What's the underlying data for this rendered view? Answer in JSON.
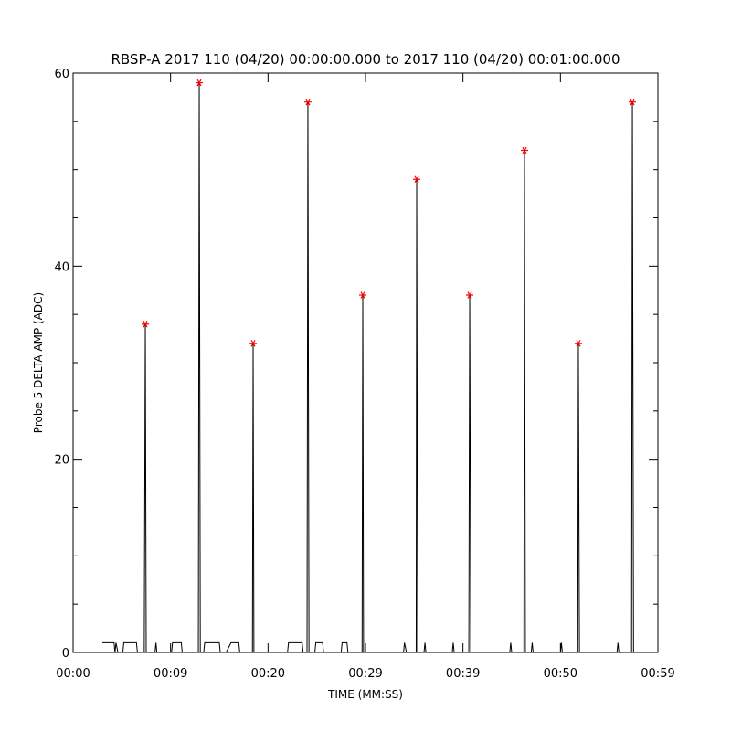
{
  "chart_data": {
    "type": "line",
    "title": "RBSP-A 2017 110 (04/20) 00:00:00.000 to 2017 110 (04/20) 00:01:00.000",
    "x_label": "TIME (MM:SS)",
    "y_label": "Probe 5 DELTA AMP (ADC)",
    "xlim": [
      0,
      60
    ],
    "ylim": [
      0,
      60
    ],
    "xticks": [
      {
        "value": 0,
        "label": "00:00"
      },
      {
        "value": 10,
        "label": "00:09"
      },
      {
        "value": 20,
        "label": "00:20"
      },
      {
        "value": 30,
        "label": "00:29"
      },
      {
        "value": 40,
        "label": "00:39"
      },
      {
        "value": 50,
        "label": "00:50"
      },
      {
        "value": 60,
        "label": "00:59"
      }
    ],
    "yticks": [
      0,
      20,
      40,
      60
    ],
    "yminorticks": [
      5,
      10,
      15,
      25,
      30,
      35,
      45,
      50,
      55
    ],
    "series": [
      {
        "color": "#000000",
        "style": "line",
        "x": [
          3.0,
          4.2,
          4.3,
          4.4,
          4.6,
          5.1,
          5.2,
          6.5,
          6.6,
          7.3,
          7.41,
          7.5,
          8.4,
          8.5,
          8.6,
          10.1,
          10.2,
          11.1,
          11.2,
          12.85,
          12.94,
          13.05,
          13.4,
          13.5,
          15.0,
          15.1,
          15.7,
          16.2,
          17.0,
          17.1,
          18.4,
          18.47,
          18.55,
          22.0,
          22.1,
          23.5,
          23.6,
          24.0,
          24.09,
          24.2,
          24.8,
          24.9,
          25.6,
          25.7,
          27.5,
          27.6,
          28.1,
          28.2,
          29.65,
          29.72,
          29.8,
          33.9,
          34.0,
          34.2,
          35.2,
          35.25,
          35.35,
          36.0,
          36.1,
          36.2,
          38.9,
          39.0,
          39.1,
          40.6,
          40.69,
          40.8,
          44.8,
          44.9,
          45.0,
          46.25,
          46.31,
          46.4,
          47.0,
          47.1,
          47.2,
          50.0,
          50.1,
          50.2,
          51.78,
          51.84,
          51.95,
          55.8,
          55.9,
          56.0,
          57.3,
          57.38,
          57.5
        ],
        "values": [
          1,
          1,
          0,
          1,
          0,
          0,
          1,
          1,
          0,
          0,
          34,
          0,
          0,
          1,
          0,
          0,
          1,
          1,
          0,
          0,
          59,
          0,
          0,
          1,
          1,
          0,
          0,
          1,
          1,
          0,
          0,
          32,
          0,
          0,
          1,
          1,
          0,
          0,
          57,
          0,
          0,
          1,
          1,
          0,
          0,
          1,
          1,
          0,
          0,
          37,
          0,
          0,
          1,
          0,
          0,
          49,
          0,
          0,
          1,
          0,
          0,
          1,
          0,
          0,
          37,
          0,
          0,
          1,
          0,
          0,
          52,
          0,
          0,
          1,
          0,
          0,
          1,
          0,
          0,
          32,
          0,
          0,
          1,
          0,
          0,
          57,
          0
        ]
      },
      {
        "color": "#ff0000",
        "style": "asterisk",
        "x": [
          7.41,
          12.94,
          18.47,
          24.09,
          29.72,
          35.25,
          40.69,
          46.31,
          51.84,
          57.38
        ],
        "values": [
          34,
          59,
          32,
          57,
          37,
          49,
          37,
          52,
          32,
          57
        ]
      }
    ]
  }
}
